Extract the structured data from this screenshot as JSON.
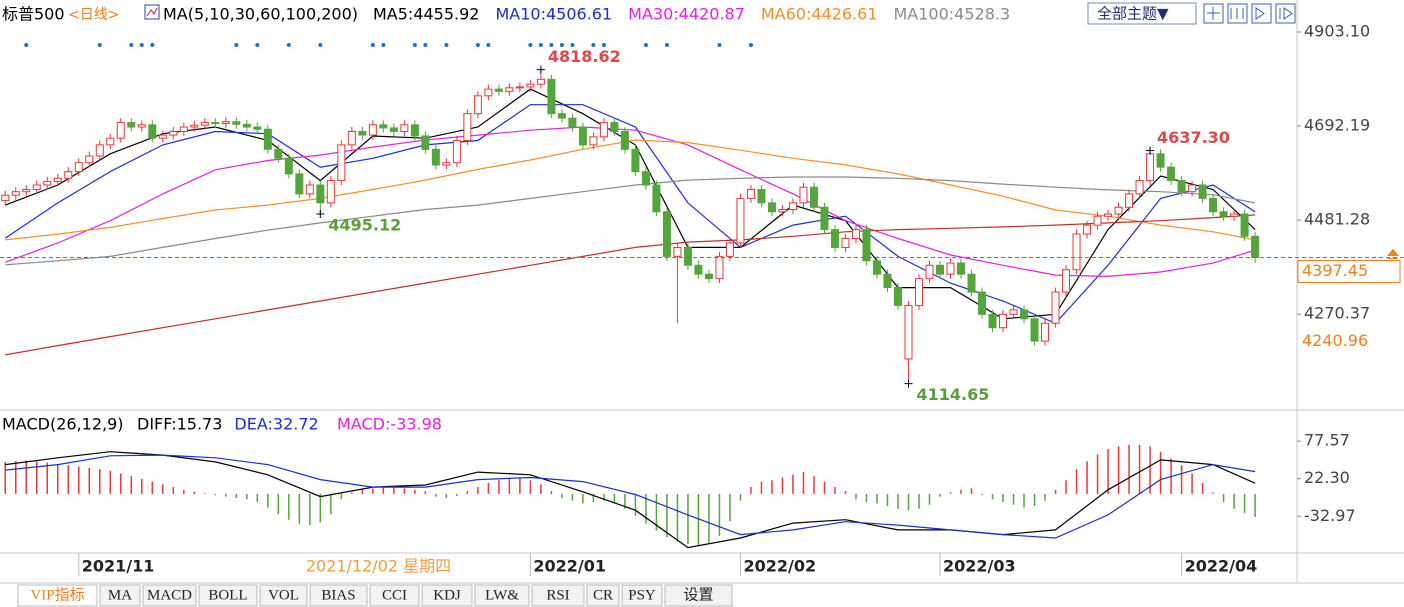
{
  "chart_data": {
    "type": "candlestick",
    "title": "标普500",
    "period": "<日线>",
    "ma_title": "MA(5,10,30,60,100,200)",
    "theme_button": "全部主题▼",
    "up_color": "#e8383a",
    "down_color": "#54a53c",
    "xlim": [
      -0.5,
      122.8
    ],
    "ylim": [
      4060,
      4930
    ],
    "yticks": [
      {
        "value": 4903.1,
        "label": "4903.10"
      },
      4692.19,
      4481.28,
      4270.37
    ],
    "xticks": [
      {
        "value": 7,
        "label": "2021/11"
      },
      {
        "value": 50,
        "label": "2022/01"
      },
      {
        "value": 70,
        "label": "2022/02"
      },
      {
        "value": 89,
        "label": "2022/03"
      },
      {
        "value": 112,
        "label": "2022/04"
      }
    ],
    "cursor_label": {
      "value": 29,
      "label": "2021/12/02 星期四"
    },
    "last_price": 4397.45,
    "last_price_color": "#f08020",
    "range_low_label": 4240.96,
    "high_marks": [
      4818.62,
      {
        "value": 4637.3,
        "label": "4637.30"
      }
    ],
    "low_marks": [
      4495.12,
      4114.65
    ],
    "signals": [
      2,
      9,
      12,
      13,
      14,
      22,
      24,
      27,
      30,
      35,
      36,
      39,
      40,
      42,
      45,
      46,
      50,
      51,
      52,
      53,
      54,
      56,
      57,
      61,
      63,
      68,
      71
    ],
    "open": [
      4525,
      4537,
      4545,
      4550,
      4560,
      4568,
      4575,
      4590,
      4610,
      4625,
      4650,
      4665,
      4700,
      4690,
      4695,
      4665,
      4672,
      4680,
      4690,
      4694,
      4700,
      4698,
      4702,
      4696,
      4690,
      4685,
      4640,
      4620,
      4585,
      4540,
      4560,
      4520,
      4570,
      4650,
      4680,
      4672,
      4695,
      4688,
      4680,
      4695,
      4670,
      4640,
      4605,
      4610,
      4660,
      4720,
      4760,
      4775,
      4770,
      4778,
      4780,
      4786,
      4797,
      4720,
      4710,
      4690,
      4650,
      4668,
      4700,
      4680,
      4640,
      4590,
      4560,
      4500,
      4400,
      4420,
      4380,
      4360,
      4350,
      4400,
      4430,
      4530,
      4550,
      4520,
      4500,
      4505,
      4520,
      4555,
      4510,
      4460,
      4420,
      4440,
      4460,
      4390,
      4360,
      4330,
      4170,
      4290,
      4350,
      4380,
      4360,
      4385,
      4360,
      4320,
      4270,
      4240,
      4270,
      4280,
      4260,
      4210,
      4250,
      4320,
      4370,
      4450,
      4470,
      4490,
      4495,
      4510,
      4540,
      4570,
      4630,
      4600,
      4570,
      4545,
      4560,
      4530,
      4500,
      4490,
      4495,
      4445
    ],
    "high": [
      4547,
      4555,
      4560,
      4570,
      4578,
      4585,
      4600,
      4620,
      4635,
      4660,
      4675,
      4710,
      4710,
      4705,
      4705,
      4682,
      4690,
      4700,
      4704,
      4710,
      4710,
      4712,
      4712,
      4706,
      4700,
      4695,
      4650,
      4630,
      4595,
      4570,
      4570,
      4580,
      4660,
      4690,
      4690,
      4705,
      4705,
      4698,
      4705,
      4705,
      4680,
      4650,
      4620,
      4670,
      4730,
      4770,
      4785,
      4785,
      4788,
      4790,
      4796,
      4818.62,
      4807,
      4730,
      4720,
      4700,
      4678,
      4710,
      4710,
      4690,
      4650,
      4600,
      4570,
      4510,
      4430,
      4430,
      4390,
      4370,
      4410,
      4440,
      4540,
      4560,
      4560,
      4530,
      4515,
      4530,
      4565,
      4565,
      4520,
      4470,
      4450,
      4470,
      4470,
      4400,
      4370,
      4340,
      4300,
      4360,
      4390,
      4390,
      4395,
      4395,
      4370,
      4330,
      4280,
      4280,
      4290,
      4290,
      4270,
      4260,
      4330,
      4380,
      4460,
      4480,
      4500,
      4505,
      4520,
      4550,
      4580,
      4637.3,
      4640,
      4610,
      4580,
      4570,
      4570,
      4540,
      4510,
      4505,
      4505,
      4455
    ],
    "low": [
      4515,
      4527,
      4535,
      4540,
      4550,
      4558,
      4565,
      4580,
      4600,
      4615,
      4640,
      4655,
      4680,
      4680,
      4655,
      4655,
      4662,
      4670,
      4680,
      4684,
      4688,
      4688,
      4686,
      4680,
      4675,
      4630,
      4610,
      4575,
      4530,
      4530,
      4495.12,
      4510,
      4560,
      4640,
      4662,
      4662,
      4678,
      4670,
      4670,
      4660,
      4630,
      4595,
      4595,
      4600,
      4650,
      4710,
      4750,
      4760,
      4760,
      4768,
      4770,
      4776,
      4710,
      4700,
      4680,
      4640,
      4640,
      4658,
      4670,
      4630,
      4580,
      4550,
      4490,
      4390,
      4250,
      4370,
      4350,
      4340,
      4340,
      4390,
      4420,
      4520,
      4510,
      4490,
      4490,
      4495,
      4510,
      4500,
      4450,
      4410,
      4410,
      4430,
      4380,
      4350,
      4320,
      4280,
      4114.65,
      4280,
      4340,
      4350,
      4350,
      4350,
      4310,
      4260,
      4230,
      4230,
      4260,
      4250,
      4200,
      4200,
      4240,
      4310,
      4360,
      4440,
      4460,
      4480,
      4485,
      4500,
      4530,
      4560,
      4590,
      4560,
      4535,
      4535,
      4520,
      4490,
      4480,
      4480,
      4435,
      4385
    ],
    "close": [
      4537,
      4545,
      4550,
      4560,
      4568,
      4575,
      4590,
      4610,
      4625,
      4650,
      4665,
      4700,
      4690,
      4695,
      4665,
      4672,
      4680,
      4690,
      4694,
      4700,
      4698,
      4702,
      4696,
      4690,
      4685,
      4640,
      4620,
      4585,
      4540,
      4560,
      4520,
      4570,
      4650,
      4680,
      4672,
      4695,
      4688,
      4680,
      4695,
      4670,
      4640,
      4605,
      4610,
      4660,
      4720,
      4760,
      4775,
      4770,
      4778,
      4780,
      4786,
      4797,
      4720,
      4710,
      4690,
      4650,
      4668,
      4700,
      4680,
      4640,
      4590,
      4560,
      4500,
      4400,
      4420,
      4380,
      4360,
      4350,
      4400,
      4430,
      4530,
      4550,
      4520,
      4500,
      4505,
      4520,
      4555,
      4510,
      4460,
      4420,
      4440,
      4460,
      4390,
      4360,
      4330,
      4290,
      4290,
      4350,
      4380,
      4360,
      4385,
      4360,
      4320,
      4270,
      4240,
      4270,
      4280,
      4260,
      4210,
      4250,
      4320,
      4370,
      4450,
      4470,
      4490,
      4495,
      4510,
      4540,
      4570,
      4630,
      4600,
      4570,
      4545,
      4560,
      4530,
      4500,
      4490,
      4495,
      4445,
      4397.45
    ],
    "ma_x": [
      0,
      5,
      10,
      15,
      20,
      25,
      30,
      35,
      40,
      45,
      50,
      55,
      60,
      65,
      70,
      75,
      80,
      85,
      90,
      95,
      100,
      105,
      110,
      115,
      119
    ],
    "ma_series": [
      {
        "name": "MA5:4455.92",
        "color": "#000000",
        "values": [
          4515,
          4560,
          4630,
          4675,
          4690,
          4660,
          4570,
          4670,
          4665,
          4690,
          4775,
          4720,
          4650,
          4420,
          4420,
          4515,
          4480,
          4330,
          4330,
          4260,
          4270,
          4460,
          4580,
          4550,
          4460
        ]
      },
      {
        "name": "MA10:4506.61",
        "color": "#1a2fd0",
        "values": [
          4441,
          4520,
          4590,
          4650,
          4680,
          4675,
          4600,
          4620,
          4650,
          4660,
          4740,
          4740,
          4690,
          4520,
          4420,
          4470,
          4490,
          4400,
          4340,
          4300,
          4250,
          4380,
          4530,
          4560,
          4500
        ]
      },
      {
        "name": "MA30:4420.87",
        "color": "#e621e6",
        "values": [
          4387,
          4430,
          4480,
          4540,
          4594,
          4615,
          4627,
          4645,
          4661,
          4672,
          4683,
          4690,
          4683,
          4650,
          4594,
          4540,
          4480,
          4440,
          4403,
          4380,
          4358,
          4355,
          4365,
          4385,
          4414
        ]
      },
      {
        "name": "MA60:4426.61",
        "color": "#f5902a",
        "values": [
          4437,
          4450,
          4465,
          4485,
          4504,
          4515,
          4530,
          4550,
          4571,
          4595,
          4616,
          4640,
          4661,
          4655,
          4638,
          4620,
          4605,
          4585,
          4560,
          4535,
          4504,
          4490,
          4470,
          4455,
          4437
        ]
      },
      {
        "name": "MA100:4528.3",
        "color": "#8a8a8a",
        "values": [
          4381,
          4390,
          4400,
          4420,
          4440,
          4459,
          4475,
          4490,
          4505,
          4515,
          4530,
          4545,
          4560,
          4571,
          4575,
          4578,
          4578,
          4575,
          4570,
          4562,
          4555,
          4549,
          4545,
          4538,
          4520
        ]
      },
      {
        "color": "#c0302a",
        "values": [
          4179,
          4200,
          4220,
          4240,
          4260,
          4280,
          4300,
          4320,
          4340,
          4360,
          4380,
          4400,
          4420,
          4432,
          4437,
          4445,
          4455,
          4460,
          4463,
          4466,
          4470,
          4475,
          4480,
          4487,
          4493
        ]
      }
    ],
    "macd": {
      "title": "MACD(26,12,9)",
      "ylim": [
        -87,
        91
      ],
      "yticks": [
        77.57,
        {
          "value": 22.3,
          "label": "22.30"
        },
        -32.97
      ],
      "histogram_label": "MACD:-33.98",
      "histogram_label_color": "#e621e6",
      "histogram": [
        47,
        48,
        49,
        48,
        46,
        44,
        42,
        40,
        38,
        36,
        34,
        30,
        26,
        22,
        18,
        14,
        10,
        6,
        3,
        1,
        -2,
        -4,
        -6,
        -8,
        -12,
        -20,
        -30,
        -38,
        -44,
        -46,
        -42,
        -30,
        -8,
        2,
        6,
        8,
        9,
        9,
        8,
        6,
        4,
        -4,
        -6,
        -3,
        4,
        10,
        16,
        20,
        22,
        24,
        20,
        14,
        4,
        -6,
        -10,
        -14,
        -12,
        -10,
        -14,
        -22,
        -32,
        -44,
        -54,
        -64,
        -70,
        -74,
        -76,
        -72,
        -62,
        -40,
        -10,
        10,
        18,
        20,
        24,
        28,
        32,
        26,
        18,
        10,
        4,
        -8,
        -12,
        -14,
        -18,
        -22,
        -24,
        -22,
        -16,
        -4,
        2,
        6,
        8,
        -2,
        -8,
        -12,
        -16,
        -20,
        -18,
        -10,
        6,
        20,
        36,
        48,
        58,
        66,
        70,
        72,
        72,
        70,
        62,
        52,
        42,
        30,
        16,
        2,
        -12,
        -22,
        -28,
        -33.98
      ],
      "series": [
        {
          "name": "DIFF:15.73",
          "color": "#000000",
          "values": [
            43,
            53,
            62,
            57,
            47,
            28,
            -4,
            10,
            13,
            32,
            28,
            3,
            -24,
            -79,
            -65,
            -43,
            -38,
            -53,
            -53,
            -60,
            -53,
            6,
            50,
            43,
            15.73
          ]
        },
        {
          "name": "DEA:32.72",
          "color": "#1a2fd0",
          "values": [
            35,
            43,
            56,
            57,
            53,
            43,
            21,
            10,
            10,
            21,
            24,
            18,
            -1,
            -31,
            -60,
            -53,
            -41,
            -46,
            -53,
            -60,
            -65,
            -31,
            21,
            43,
            32.72
          ]
        }
      ]
    },
    "tabs": [
      "VIP指标",
      "MA",
      "MACD",
      "BOLL",
      "VOL",
      "BIAS",
      "CCI",
      "KDJ",
      "LW&",
      "RSI",
      "CR",
      "PSY",
      "设置"
    ],
    "active_tab": 0
  }
}
